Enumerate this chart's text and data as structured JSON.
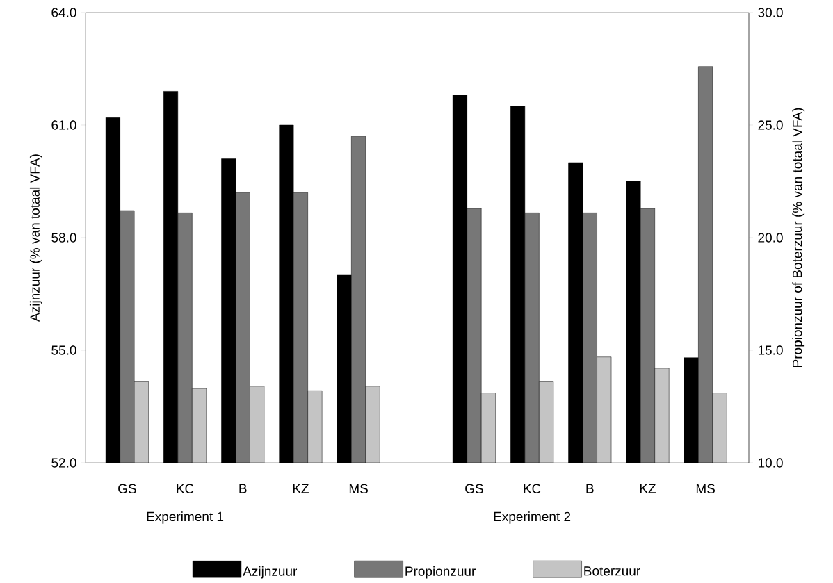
{
  "chart_data": {
    "type": "bar",
    "categories": [
      "GS",
      "KC",
      "B",
      "KZ",
      "MS",
      null,
      "GS",
      "KC",
      "B",
      "KZ",
      "MS"
    ],
    "ylabel": "Azijnzuur (% van totaal VFA)",
    "y2label": "Propionzuur of Boterzuur (% van totaal VFA)",
    "ylim": [
      52,
      64
    ],
    "yticks": [
      {
        "value": 52,
        "label": "52.0"
      },
      {
        "value": 55,
        "label": "55.0"
      },
      {
        "value": 58,
        "label": "58.0"
      },
      {
        "value": 61,
        "label": "61.0"
      },
      {
        "value": 64,
        "label": "64.0"
      }
    ],
    "y2lim": [
      10,
      30
    ],
    "y2ticks": [
      {
        "value": 10,
        "label": "10.0"
      },
      {
        "value": 15,
        "label": "15.0"
      },
      {
        "value": 20,
        "label": "20.0"
      },
      {
        "value": 25,
        "label": "25.0"
      },
      {
        "value": 30,
        "label": "30.0"
      }
    ],
    "series": [
      {
        "name": "Azijnzuur",
        "color": "#000000",
        "values": [
          61.2,
          61.9,
          60.1,
          61.0,
          57.0,
          null,
          61.8,
          61.5,
          60.0,
          59.5,
          54.8
        ]
      },
      {
        "name": "Propionzuur",
        "color": "#777777",
        "axis": "y2",
        "values": [
          21.2,
          21.1,
          22.0,
          22.0,
          24.5,
          null,
          21.3,
          21.1,
          21.1,
          21.3,
          27.6
        ]
      },
      {
        "name": "Boterzuur",
        "color": "#c4c4c4",
        "axis": "y2",
        "values": [
          13.6,
          13.3,
          13.4,
          13.2,
          13.4,
          null,
          13.1,
          13.6,
          14.7,
          14.2,
          13.1
        ]
      }
    ],
    "annotations": [
      "Experiment 1",
      "Experiment 2"
    ],
    "legend": "bottom"
  }
}
